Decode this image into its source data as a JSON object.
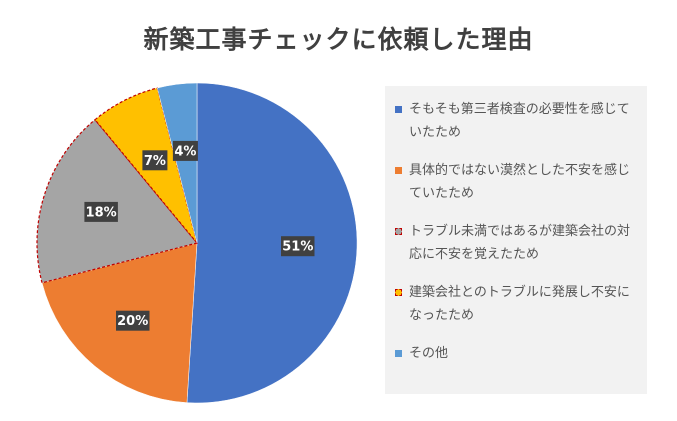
{
  "chart_data": {
    "type": "pie",
    "title": "新築工事チェックに依頼した理由",
    "legend_position": "right",
    "slices": [
      {
        "label": "そもそも第三者検査の必要性を感じていたため",
        "value": 51,
        "display": "51%",
        "color": "#4472c4",
        "dashed": false
      },
      {
        "label": "具体的ではない漠然とした不安を感じていたため",
        "value": 20,
        "display": "20%",
        "color": "#ed7d31",
        "dashed": false
      },
      {
        "label": "トラブル未満ではあるが建築会社の対応に不安を覚えたため",
        "value": 18,
        "display": "18%",
        "color": "#a5a5a5",
        "dashed": true
      },
      {
        "label": "建築会社とのトラブルに発展し不安になったため",
        "value": 7,
        "display": "7%",
        "color": "#ffc000",
        "dashed": true
      },
      {
        "label": "その他",
        "value": 4,
        "display": "4%",
        "color": "#5b9bd5",
        "dashed": false
      }
    ]
  }
}
